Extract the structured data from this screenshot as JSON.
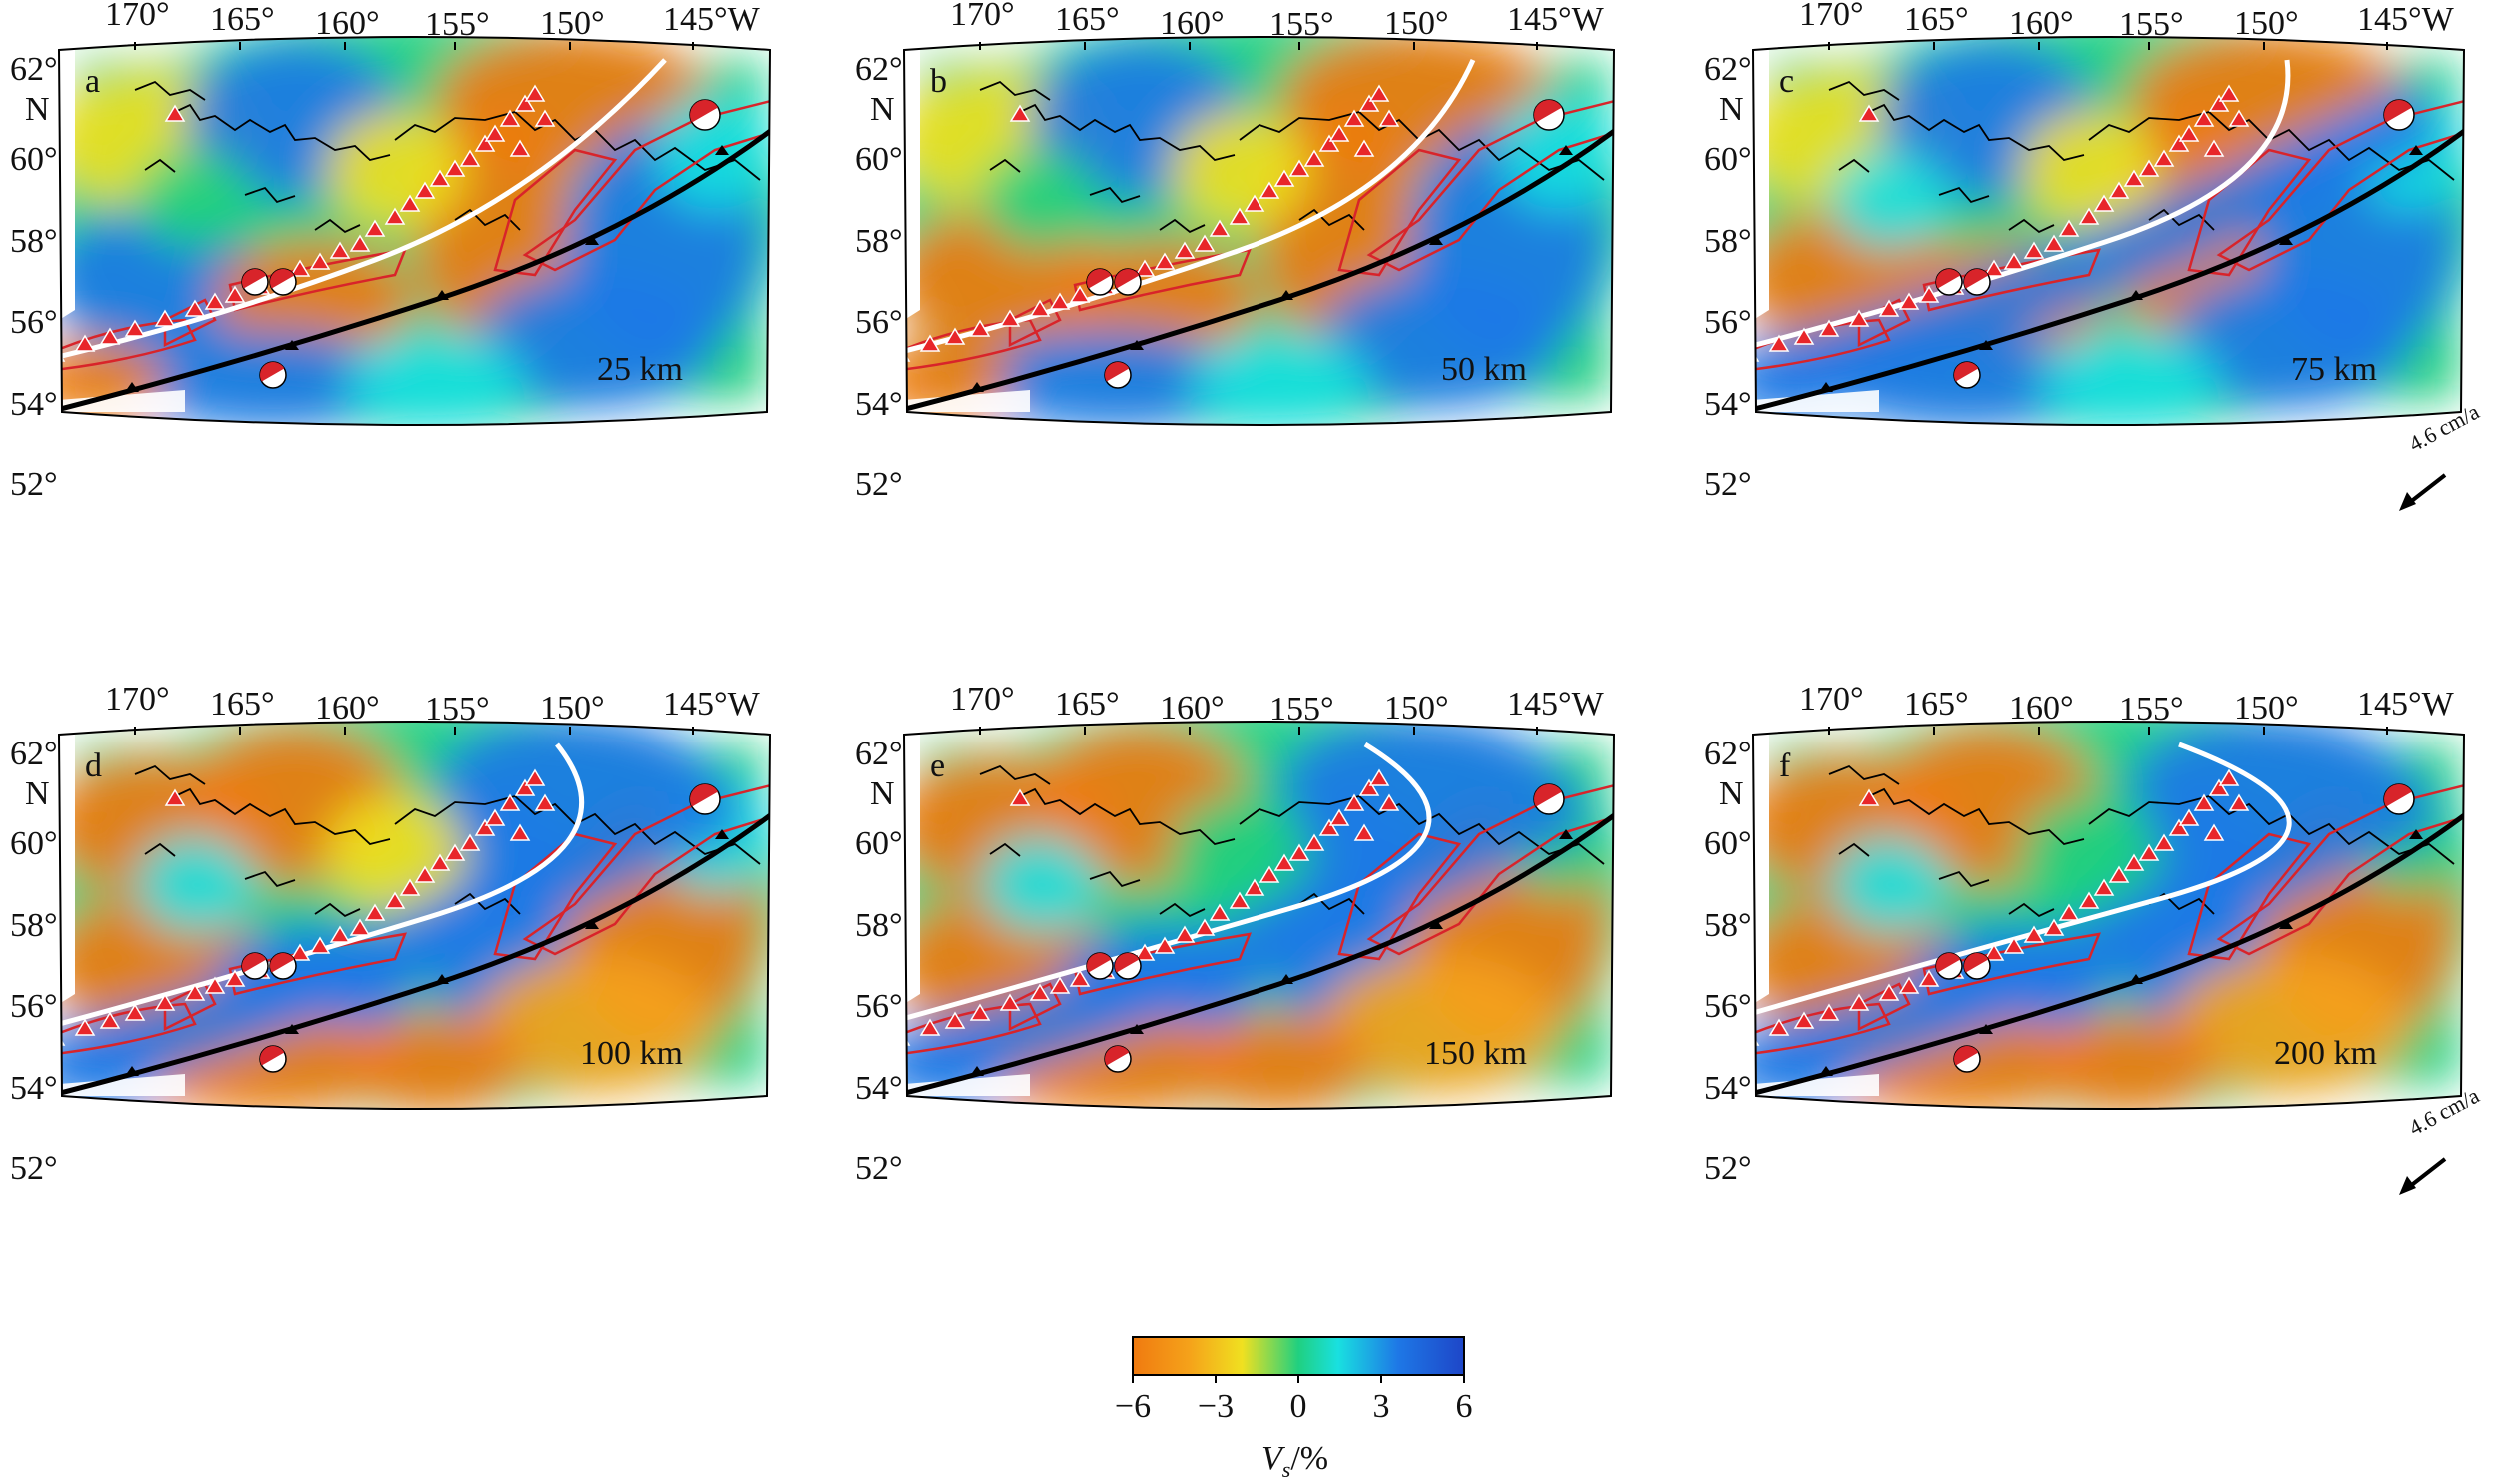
{
  "panels": [
    {
      "label": "a",
      "depth": "25 km",
      "slab_shift": 0,
      "arrow": false
    },
    {
      "label": "b",
      "depth": "50 km",
      "slab_shift": 0.6,
      "arrow": false
    },
    {
      "label": "c",
      "depth": "75 km",
      "slab_shift": 1.2,
      "arrow": true
    },
    {
      "label": "d",
      "depth": "100 km",
      "slab_shift": 1.8,
      "arrow": false
    },
    {
      "label": "e",
      "depth": "150 km",
      "slab_shift": 2.4,
      "arrow": false
    },
    {
      "label": "f",
      "depth": "200 km",
      "slab_shift": 3.0,
      "arrow": true
    }
  ],
  "lon_labels": [
    "170°",
    "165°",
    "160°",
    "155°",
    "150°",
    "145°W"
  ],
  "lat_labels": [
    "62°",
    "60°",
    "58°",
    "56°",
    "54°",
    "52°"
  ],
  "lat_unit": "N",
  "velocity_arrow": "4.6 cm/a",
  "colorbar": {
    "ticks": [
      "−6",
      "−3",
      "0",
      "3",
      "6"
    ],
    "label_main": "V",
    "label_sub": "s",
    "label_unit": "/%",
    "colors": [
      "#f07a10",
      "#f5a21a",
      "#f0e020",
      "#20d080",
      "#19e0e0",
      "#1e78e6",
      "#1e46c8"
    ]
  },
  "styling": {
    "trench_color": "#000000",
    "slab_contour_color": "#ffffff",
    "rupture_color": "#d8242a",
    "volcano_color": "#e8262a"
  }
}
